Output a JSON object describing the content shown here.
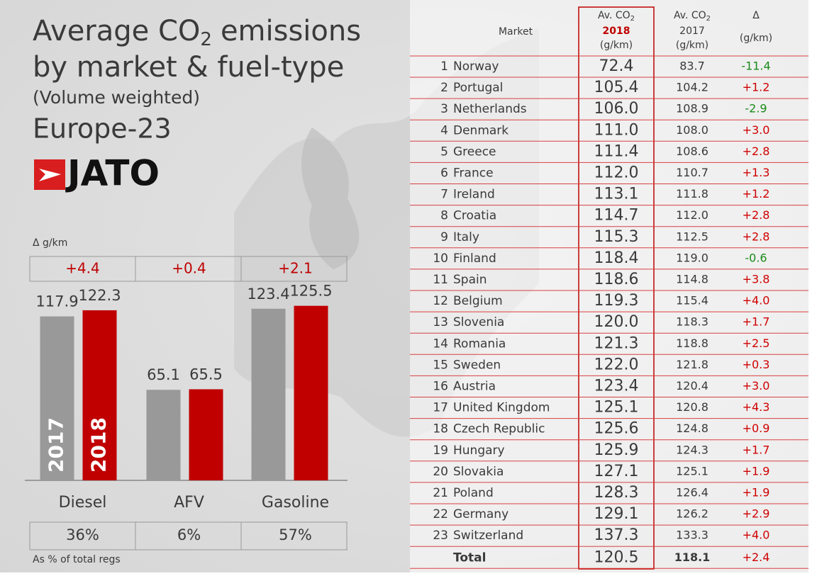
{
  "header": {
    "title_start": "Average CO",
    "title_sub": "2",
    "title_end": "emissions",
    "title_line2": "by market & fuel-type",
    "subtitle": "(Volume weighted)",
    "region": "Europe-23",
    "logo": "JATO"
  },
  "chart_data": {
    "type": "bar",
    "categories": [
      "Diesel",
      "AFV",
      "Gasoline"
    ],
    "series": [
      {
        "name": "2017",
        "color": "#999999",
        "values": [
          117.9,
          65.1,
          123.4
        ]
      },
      {
        "name": "2018",
        "color": "#c00000",
        "values": [
          122.3,
          65.5,
          125.5
        ]
      }
    ],
    "ylim": [
      0,
      135
    ],
    "delta_label": "Δ g/km",
    "deltas": {
      "values": [
        4.4,
        0.4,
        2.1
      ],
      "value_labels": [
        "+4.4",
        "+0.4",
        "+2.1"
      ]
    },
    "shares_label": "As % of total regs",
    "shares": {
      "values": [
        36,
        6,
        57
      ],
      "value_labels": [
        "36%",
        "6%",
        "57%"
      ]
    }
  },
  "table": {
    "headers": [
      {
        "main": "Market"
      },
      {
        "main": "Av. CO",
        "sub": "2",
        "year": "2018",
        "unit": "(g/km)"
      },
      {
        "main": "Av. CO",
        "sub": "2",
        "year": "2017",
        "unit": "(g/km)"
      },
      {
        "main": "Δ",
        "unit": "(g/km)"
      }
    ],
    "rows": [
      [
        "1",
        "Norway",
        "72.4",
        "83.7",
        "-11.4"
      ],
      [
        "2",
        "Portugal",
        "105.4",
        "104.2",
        "+1.2"
      ],
      [
        "3",
        "Netherlands",
        "106.0",
        "108.9",
        "-2.9"
      ],
      [
        "4",
        "Denmark",
        "111.0",
        "108.0",
        "+3.0"
      ],
      [
        "5",
        "Greece",
        "111.4",
        "108.6",
        "+2.8"
      ],
      [
        "6",
        "France",
        "112.0",
        "110.7",
        "+1.3"
      ],
      [
        "7",
        "Ireland",
        "113.1",
        "111.8",
        "+1.2"
      ],
      [
        "8",
        "Croatia",
        "114.7",
        "112.0",
        "+2.8"
      ],
      [
        "9",
        "Italy",
        "115.3",
        "112.5",
        "+2.8"
      ],
      [
        "10",
        "Finland",
        "118.4",
        "119.0",
        "-0.6"
      ],
      [
        "11",
        "Spain",
        "118.6",
        "114.8",
        "+3.8"
      ],
      [
        "12",
        "Belgium",
        "119.3",
        "115.4",
        "+4.0"
      ],
      [
        "13",
        "Slovenia",
        "120.0",
        "118.3",
        "+1.7"
      ],
      [
        "14",
        "Romania",
        "121.3",
        "118.8",
        "+2.5"
      ],
      [
        "15",
        "Sweden",
        "122.0",
        "121.8",
        "+0.3"
      ],
      [
        "16",
        "Austria",
        "123.4",
        "120.4",
        "+3.0"
      ],
      [
        "17",
        "United Kingdom",
        "125.1",
        "120.8",
        "+4.3"
      ],
      [
        "18",
        "Czech Republic",
        "125.6",
        "124.8",
        "+0.9"
      ],
      [
        "19",
        "Hungary",
        "125.9",
        "124.3",
        "+1.7"
      ],
      [
        "20",
        "Slovakia",
        "127.1",
        "125.1",
        "+1.9"
      ],
      [
        "21",
        "Poland",
        "128.3",
        "126.4",
        "+1.9"
      ],
      [
        "22",
        "Germany",
        "129.1",
        "126.2",
        "+2.9"
      ],
      [
        "23",
        "Switzerland",
        "137.3",
        "133.3",
        "+4.0"
      ]
    ],
    "total": {
      "label": "Total",
      "values": [
        "120.5",
        "118.1",
        "+2.4"
      ]
    }
  }
}
